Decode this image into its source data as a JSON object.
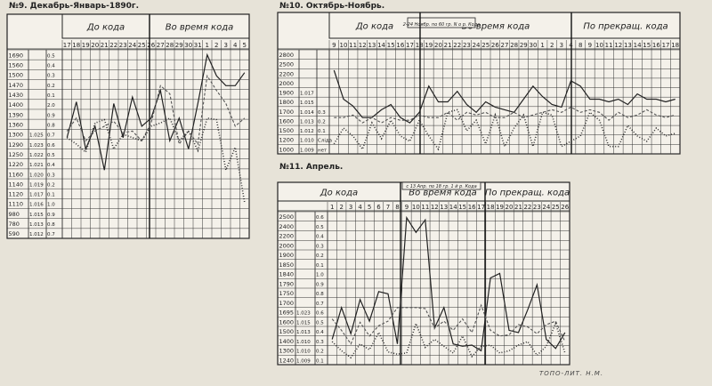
{
  "imprint": "ТОПО-ЛИТ. Н.М.",
  "chart_data": [
    {
      "type": "line",
      "title": "№9. Декабрь-Январь-1890г.",
      "period_headers": [
        "До кода",
        "Во время кода"
      ],
      "x": [
        "17",
        "18",
        "19",
        "20",
        "21",
        "22",
        "23",
        "24",
        "25",
        "26",
        "27",
        "28",
        "29",
        "30",
        "31",
        "1",
        "2",
        "3",
        "4",
        "5"
      ],
      "table_left": [
        "1690",
        "1560",
        "1500",
        "1470",
        "1430",
        "1400",
        "1390",
        "1360",
        "1300",
        "1290",
        "1250",
        "1220",
        "1160",
        "1140",
        "1120",
        "1110",
        "980",
        "780",
        "590"
      ],
      "table_mid": [
        "",
        "",
        "",
        "",
        "",
        "",
        "",
        "",
        "1.025",
        "1.023",
        "1.022",
        "1.021",
        "1.020",
        "1.019",
        "1.017",
        "1.016",
        "1.015",
        "1.013",
        "1.012"
      ],
      "table_right": [
        "0.5",
        "0.4",
        "0.3",
        "0.2",
        "0.1",
        "2.0",
        "0.9",
        "0.8",
        "0.7",
        "0.6",
        "0.5",
        "0.4",
        "0.3",
        "0.2",
        "0.1",
        "1.0",
        "0.9",
        "0.8",
        "0.7"
      ],
      "series": [
        {
          "values": [
            1180,
            1400,
            1110,
            1250,
            980,
            1390,
            1180,
            1430,
            1250,
            1300,
            1470,
            1160,
            1300,
            1110,
            1390,
            1690,
            1560,
            1500,
            1500,
            1580
          ]
        },
        {
          "values": [
            1220,
            1300,
            1160,
            1220,
            1250,
            1280,
            1210,
            1220,
            1160,
            1270,
            1500,
            1450,
            1140,
            1220,
            1140,
            1560,
            1470,
            1390,
            1250,
            1300
          ]
        },
        {
          "values": [
            1180,
            1140,
            1090,
            1270,
            1290,
            1110,
            1200,
            1180,
            1160,
            1250,
            1270,
            1300,
            1160,
            1220,
            1100,
            1300,
            1290,
            980,
            1120,
            780
          ]
        }
      ]
    },
    {
      "type": "line",
      "title": "№10. Октябрь-Ноябрь.",
      "period_headers": [
        "До кода",
        "Во время кода",
        "По прекращ. кода"
      ],
      "annotation": "2-24 Ноябр. по 60 гр. N о р. Кода",
      "x": [
        "9",
        "10",
        "11",
        "12",
        "13",
        "14",
        "15",
        "16",
        "17",
        "18",
        "19",
        "20",
        "21",
        "22",
        "23",
        "24",
        "25",
        "26",
        "27",
        "28",
        "29",
        "30",
        "1",
        "2",
        "3",
        "4",
        "8",
        "9",
        "10",
        "11",
        "12",
        "13",
        "14",
        "15",
        "16",
        "17",
        "18"
      ],
      "table_left": [
        "2800",
        "2500",
        "2200",
        "2000",
        "1900",
        "1800",
        "1700",
        "1600",
        "1500",
        "1200",
        "1000"
      ],
      "table_mid": [
        "",
        "",
        "",
        "",
        "1.017",
        "1.015",
        "1.014",
        "1.013",
        "1.012",
        "1.010",
        "1.009"
      ],
      "table_right": [
        "",
        "",
        "",
        "",
        "",
        "",
        "0.3",
        "0.2",
        "0.1",
        "Сліда",
        "нет"
      ],
      "series": [
        {
          "values": [
            2500,
            1950,
            1820,
            1600,
            1600,
            1750,
            1850,
            1600,
            1500,
            1700,
            2200,
            1900,
            1900,
            2100,
            1850,
            1700,
            1900,
            1800,
            1750,
            1700,
            1950,
            2200,
            2000,
            1850,
            1800,
            2300,
            2200,
            1950,
            1950,
            1900,
            1950,
            1850,
            2050,
            1950,
            1950,
            1900,
            1950
          ]
        },
        {
          "values": [
            1600,
            1600,
            1650,
            1500,
            1600,
            1500,
            1600,
            1550,
            1550,
            1650,
            1600,
            1600,
            1700,
            1550,
            1700,
            1650,
            1700,
            1600,
            1600,
            1700,
            1600,
            1650,
            1700,
            1750,
            1700,
            1800,
            1700,
            1750,
            1700,
            1550,
            1700,
            1600,
            1650,
            1750,
            1650,
            1600,
            1650
          ]
        },
        {
          "values": [
            1100,
            1400,
            1250,
            1000,
            1500,
            1200,
            1550,
            1250,
            1150,
            1550,
            1250,
            1000,
            1700,
            1750,
            1350,
            1550,
            1100,
            1650,
            1050,
            1400,
            1650,
            1050,
            1700,
            1650,
            1050,
            1150,
            1250,
            1700,
            1550,
            1050,
            1050,
            1450,
            1250,
            1150,
            1400,
            1250,
            1300
          ]
        }
      ]
    },
    {
      "type": "line",
      "title": "№11. Апрель.",
      "period_headers": [
        "До кода",
        "Во время кода",
        "По прекращ. кода"
      ],
      "annotation": "с 13 Апр. по 18 гр. 1 й р. Кода",
      "x": [
        "1",
        "2",
        "3",
        "4",
        "5",
        "6",
        "7",
        "8",
        "9",
        "10",
        "11",
        "12",
        "13",
        "14",
        "15",
        "16",
        "17",
        "18",
        "19",
        "20",
        "21",
        "22",
        "23",
        "24",
        "25",
        "26"
      ],
      "table_left": [
        "2500",
        "2400",
        "2200",
        "2000",
        "1900",
        "1850",
        "1840",
        "1790",
        "1750",
        "1700",
        "1695",
        "1600",
        "1500",
        "1400",
        "1300",
        "1240"
      ],
      "table_mid": [
        "",
        "",
        "",
        "",
        "",
        "",
        "",
        "",
        "",
        "",
        "1.023",
        "1.015",
        "1.013",
        "1.010",
        "1.010",
        "1.009"
      ],
      "table_right": [
        "0.6",
        "0.5",
        "0.4",
        "0.3",
        "0.2",
        "0.1",
        "1.0",
        "0.9",
        "0.8",
        "0.7",
        "0.6",
        "0.5",
        "0.4",
        "0.3",
        "0.2",
        "0.1"
      ],
      "series": [
        {
          "values": [
            1420,
            1700,
            1470,
            1770,
            1580,
            1840,
            1820,
            1380,
            2490,
            2360,
            2470,
            1520,
            1700,
            1380,
            1360,
            1370,
            1320,
            1960,
            2000,
            1500,
            1480,
            1680,
            1900,
            1420,
            1340,
            1480
          ]
        },
        {
          "values": [
            1600,
            1500,
            1380,
            1570,
            1450,
            1540,
            1580,
            1700,
            1700,
            1700,
            1690,
            1520,
            1580,
            1500,
            1600,
            1480,
            1720,
            1500,
            1450,
            1460,
            1550,
            1530,
            1470,
            1550,
            1580,
            1400
          ]
        },
        {
          "values": [
            1400,
            1320,
            1260,
            1380,
            1330,
            1480,
            1310,
            1290,
            1300,
            1560,
            1350,
            1420,
            1360,
            1300,
            1450,
            1270,
            1360,
            1370,
            1300,
            1320,
            1370,
            1400,
            1280,
            1360,
            1560,
            1300
          ]
        }
      ]
    }
  ]
}
